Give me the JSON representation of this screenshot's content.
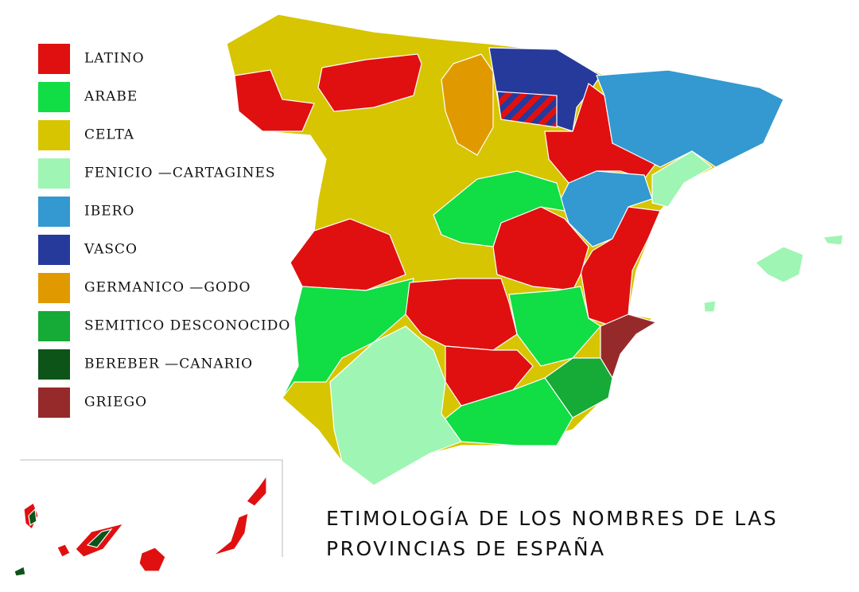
{
  "legend": {
    "items": [
      {
        "label": "LATINO",
        "color": "#e01010"
      },
      {
        "label": "ARABE",
        "color": "#11dd44"
      },
      {
        "label": "CELTA",
        "color": "#d6c500"
      },
      {
        "label": "FENICIO —CARTAGINES",
        "color": "#9ff5b3"
      },
      {
        "label": "IBERO",
        "color": "#3399d0"
      },
      {
        "label": "VASCO",
        "color": "#263a9c"
      },
      {
        "label": "GERMANICO —GODO",
        "color": "#e09a00"
      },
      {
        "label": "SEMITICO DESCONOCIDO",
        "color": "#16aa36"
      },
      {
        "label": "BEREBER —CANARIO",
        "color": "#0c5418"
      },
      {
        "label": "GRIEGO",
        "color": "#962a2a"
      }
    ]
  },
  "title": {
    "lines": [
      "ETIMOLOGÍA DE LOS NOMBRES DE LAS",
      "PROVINCIAS DE ESPAÑA"
    ]
  }
}
